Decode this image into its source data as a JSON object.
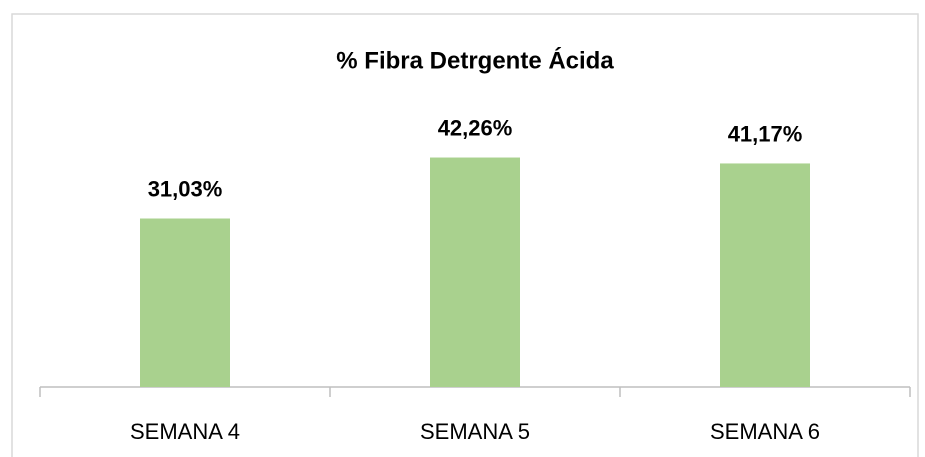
{
  "chart_data": {
    "type": "bar",
    "title": "% Fibra Detrgente Ácida",
    "categories": [
      "SEMANA 4",
      "SEMANA 5",
      "SEMANA 6"
    ],
    "values": [
      31.03,
      42.26,
      41.17
    ],
    "value_labels": [
      "31,03%",
      "42,26%",
      "41,17%"
    ],
    "color": "#a9d18e",
    "ylim": [
      0,
      50
    ]
  }
}
